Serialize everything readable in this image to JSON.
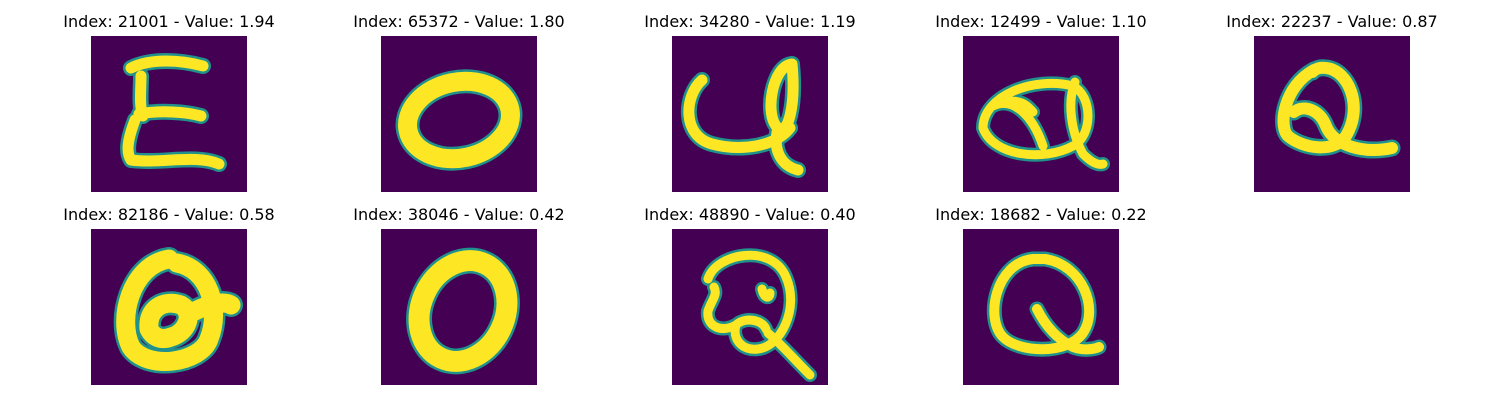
{
  "colors": {
    "background": "#440154",
    "stroke": "#fde725",
    "edge": "#21918c"
  },
  "panels": [
    {
      "title": "Index: 21001 - Value: 1.94",
      "glyph": "E"
    },
    {
      "title": "Index: 65372 - Value: 1.80",
      "glyph": "O"
    },
    {
      "title": "Index: 34280 - Value: 1.19",
      "glyph": "q"
    },
    {
      "title": "Index: 12499 - Value: 1.10",
      "glyph": "q"
    },
    {
      "title": "Index: 22237 - Value: 0.87",
      "glyph": "Q"
    },
    {
      "title": "Index: 82186 - Value: 0.58",
      "glyph": "a"
    },
    {
      "title": "Index: 38046 - Value: 0.42",
      "glyph": "O"
    },
    {
      "title": "Index: 48890 - Value: 0.40",
      "glyph": "Q"
    },
    {
      "title": "Index: 18682 - Value: 0.22",
      "glyph": "Q"
    }
  ]
}
